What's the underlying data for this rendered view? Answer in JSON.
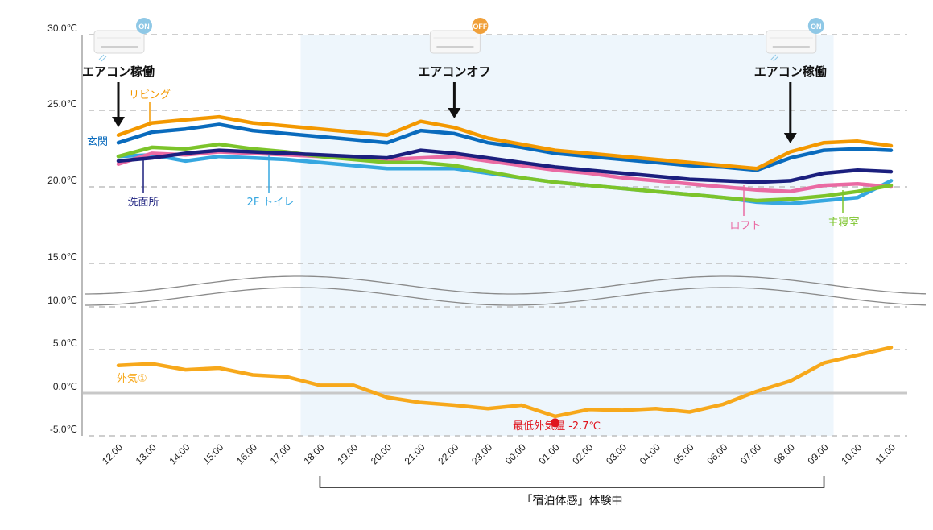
{
  "chart_data": {
    "type": "line",
    "title": "",
    "xlabel": "",
    "ylabel": "",
    "x": [
      "12:00",
      "13:00",
      "14:00",
      "15:00",
      "16:00",
      "17:00",
      "18:00",
      "19:00",
      "20:00",
      "21:00",
      "22:00",
      "23:00",
      "00:00",
      "01:00",
      "02:00",
      "03:00",
      "04:00",
      "05:00",
      "06:00",
      "07:00",
      "08:00",
      "09:00",
      "10:00",
      "11:00"
    ],
    "yticks": [
      "30.0℃",
      "25.0℃",
      "20.0℃",
      "15.0℃",
      "10.0℃",
      "5.0℃",
      "0.0℃",
      "-5.0℃"
    ],
    "ylim": [
      -5,
      30
    ],
    "axis_break": [
      7,
      14
    ],
    "grid": true,
    "series": [
      {
        "name": "リビング",
        "color": "#f39800",
        "values": [
          23.4,
          24.2,
          24.4,
          24.6,
          24.2,
          24.0,
          23.8,
          23.6,
          23.4,
          24.3,
          23.9,
          23.2,
          22.8,
          22.4,
          22.2,
          22.0,
          21.8,
          21.6,
          21.4,
          21.2,
          22.3,
          22.9,
          23.0,
          22.7
        ]
      },
      {
        "name": "玄関",
        "color": "#0a6bbd",
        "values": [
          22.9,
          23.6,
          23.8,
          24.1,
          23.7,
          23.5,
          23.3,
          23.1,
          22.9,
          23.7,
          23.5,
          22.9,
          22.6,
          22.2,
          22.0,
          21.8,
          21.6,
          21.4,
          21.3,
          21.1,
          21.9,
          22.4,
          22.5,
          22.4
        ]
      },
      {
        "name": "主寝室",
        "color": "#7cc42a",
        "values": [
          22.0,
          22.6,
          22.5,
          22.8,
          22.5,
          22.3,
          22.0,
          21.8,
          21.6,
          21.6,
          21.4,
          21.0,
          20.6,
          20.3,
          20.1,
          19.9,
          19.7,
          19.5,
          19.3,
          19.1,
          19.2,
          19.4,
          19.7,
          20.1
        ]
      },
      {
        "name": "ロフト",
        "color": "#ea6aa3",
        "values": [
          21.5,
          22.2,
          22.1,
          22.3,
          22.2,
          22.1,
          22.0,
          21.9,
          21.8,
          21.9,
          22.0,
          21.7,
          21.4,
          21.1,
          20.9,
          20.6,
          20.4,
          20.2,
          20.0,
          19.8,
          19.7,
          20.1,
          20.2,
          20.0
        ]
      },
      {
        "name": "洗面所",
        "color": "#1b1f7e",
        "values": [
          21.7,
          21.9,
          22.2,
          22.4,
          22.3,
          22.2,
          22.1,
          22.0,
          21.9,
          22.4,
          22.2,
          21.9,
          21.6,
          21.3,
          21.1,
          20.9,
          20.7,
          20.5,
          20.4,
          20.3,
          20.4,
          20.9,
          21.1,
          21.0
        ]
      },
      {
        "name": "2F トイレ",
        "color": "#36a7e0",
        "values": [
          22.0,
          22.1,
          21.7,
          22.0,
          21.9,
          21.8,
          21.6,
          21.4,
          21.2,
          21.2,
          21.2,
          20.9,
          20.6,
          20.3,
          20.1,
          19.9,
          19.7,
          19.5,
          19.3,
          19.0,
          18.9,
          19.1,
          19.3,
          20.4
        ]
      },
      {
        "name": "外気①",
        "color": "#f7a81b",
        "values": [
          3.2,
          3.4,
          2.7,
          2.9,
          2.1,
          1.9,
          0.9,
          0.9,
          -0.5,
          -1.1,
          -1.4,
          -1.8,
          -1.4,
          -2.7,
          -1.9,
          -2.0,
          -1.8,
          -2.2,
          -1.3,
          0.2,
          1.4,
          3.5,
          4.4,
          5.3
        ]
      }
    ],
    "annotations": {
      "ac_events": [
        {
          "time": "12:00",
          "label": "エアコン稼働",
          "badge": "ON",
          "badge_color": "#8fc8e6"
        },
        {
          "time": "22:00",
          "label": "エアコンオフ",
          "badge": "OFF",
          "badge_color": "#f0a03a"
        },
        {
          "time": "08:00",
          "label": "エアコン稼働",
          "badge": "ON",
          "badge_color": "#8fc8e6"
        }
      ],
      "min_outdoor": {
        "time": "01:00",
        "value": -2.7,
        "label": "最低外気温 -2.7℃",
        "color": "#e0141e"
      },
      "period": {
        "start": "18:00",
        "end": "09:00",
        "label": "「宿泊体感」体験中",
        "shade_color": "#eef6fc"
      }
    }
  }
}
